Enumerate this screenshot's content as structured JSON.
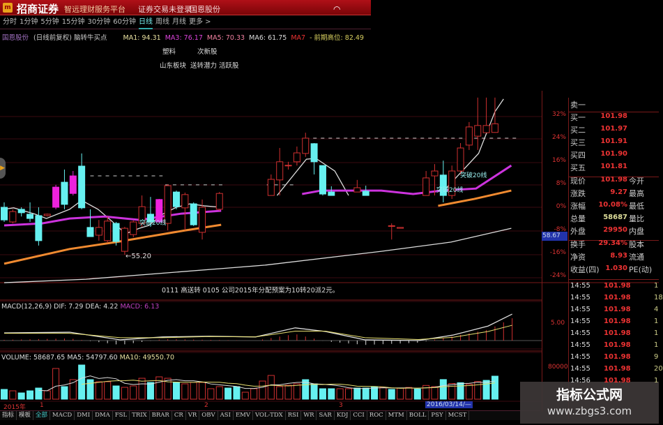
{
  "app": {
    "logo_text": "m",
    "brand": "招商证券",
    "slogan": "智远理财服务平台",
    "login_status": "证券交易未登录",
    "stock_name": "国恩股份",
    "wifi_icon": "wifi-icon"
  },
  "periods": [
    {
      "label": "分时"
    },
    {
      "label": "1分钟"
    },
    {
      "label": "5分钟"
    },
    {
      "label": "15分钟"
    },
    {
      "label": "30分钟"
    },
    {
      "label": "60分钟"
    },
    {
      "label": "日线",
      "active": true
    },
    {
      "label": "周线"
    },
    {
      "label": "月线"
    },
    {
      "label": "更多 >"
    }
  ],
  "info": {
    "stock": "国恩股份",
    "mode": "(日线前复权) 脑转牛买点",
    "ma1": "MA1: 94.31",
    "ma3": "MA3: 76.17",
    "ma5": "MA5: 70.33",
    "ma6": "MA6: 61.75",
    "ma7": "MA7",
    "prev_high": "- 前期高位: 82.49"
  },
  "tags": {
    "row1": [
      "塑料",
      "次新股"
    ],
    "row2": [
      "山东板块",
      "送转潜力 活跃股"
    ]
  },
  "colors": {
    "up": "#d03030",
    "down": "#66f0f0",
    "signal": "#ee22dd",
    "ma_white": "#dddddd",
    "ma_magenta": "#cc33dd",
    "ma_orange": "#f08a30",
    "grid": "#3a0a10"
  },
  "chart_data": {
    "type": "candlestick",
    "y_axis_ticks": [
      "32%",
      "24%",
      "16%",
      "8%",
      "0%",
      "-8%",
      "-16%",
      "-24%"
    ],
    "y_axis_values": [
      32,
      24,
      16,
      8,
      0,
      -8,
      -16,
      -24
    ],
    "current_price_tag": "58.67",
    "candles": [
      {
        "i": 0,
        "t": "down",
        "o": 0,
        "c": -4.4,
        "h": 1.7,
        "l": -5.1
      },
      {
        "i": 1,
        "t": "up",
        "o": -5.1,
        "c": -1.5,
        "h": -0.7,
        "l": -5.6
      },
      {
        "i": 2,
        "t": "down",
        "o": -0.7,
        "c": -1.9,
        "h": 0,
        "l": -3.2
      },
      {
        "i": 3,
        "t": "down",
        "o": -2.4,
        "c": -3.9,
        "h": 1.7,
        "l": -5.1
      },
      {
        "i": 4,
        "t": "down",
        "o": -2.9,
        "c": -11.6,
        "h": 0,
        "l": -13.3
      },
      {
        "i": 5,
        "t": "up",
        "o": -2.9,
        "c": -2.4,
        "h": -2.2,
        "l": -3.2
      },
      {
        "i": 6,
        "t": "signal",
        "o": 0,
        "c": 7.0,
        "h": 7.8,
        "l": -0.7
      },
      {
        "i": 7,
        "t": "down",
        "o": 8.7,
        "c": 1.0,
        "h": 13.1,
        "l": -0.7
      },
      {
        "i": 8,
        "t": "signal",
        "o": 4.8,
        "c": 10.9,
        "h": 12.6,
        "l": 4.1
      },
      {
        "i": 9,
        "t": "down",
        "o": 14.3,
        "c": -0.2,
        "h": 18.7,
        "l": -0.7
      },
      {
        "i": 10,
        "t": "down",
        "o": -7.0,
        "c": -10.2,
        "h": -0.7,
        "l": -10.2
      },
      {
        "i": 11,
        "t": "up",
        "o": -9.7,
        "c": -7.0,
        "h": -4.4,
        "l": -11.6
      },
      {
        "i": 12,
        "t": "up",
        "o": -11.6,
        "c": -4.8,
        "h": -3.2,
        "l": -12.4
      },
      {
        "i": 13,
        "t": "down",
        "o": -5.6,
        "c": -11.9,
        "h": -5.1,
        "l": -13.3
      },
      {
        "i": 14,
        "t": "up",
        "o": -15.3,
        "c": -7.3,
        "h": -6.8,
        "l": -16.5
      },
      {
        "i": 15,
        "t": "up",
        "o": -9.5,
        "c": -5.1,
        "h": -4.6,
        "l": -10.4
      },
      {
        "i": 16,
        "t": "up",
        "o": -5.6,
        "c": 0.2,
        "h": 4.1,
        "l": -6.8
      },
      {
        "i": 17,
        "t": "down",
        "o": -2.4,
        "c": -5.1,
        "h": 3.6,
        "l": -6.8
      },
      {
        "i": 18,
        "t": "signal",
        "o": -5.1,
        "c": 2.7,
        "h": 2.9,
        "l": -5.6
      },
      {
        "i": 19,
        "t": "up",
        "o": -5.6,
        "c": 7.5,
        "h": 8.0,
        "l": -8.0
      },
      {
        "i": 20,
        "t": "down",
        "o": 5.3,
        "c": 0.2,
        "h": 5.8,
        "l": -0.7
      },
      {
        "i": 21,
        "t": "up",
        "o": -0.2,
        "c": 4.4,
        "h": 5.1,
        "l": -8.0
      },
      {
        "i": 22,
        "t": "down",
        "o": 1.2,
        "c": -6.1,
        "h": 1.7,
        "l": -6.5
      },
      {
        "i": 23,
        "t": "up",
        "o": -8.7,
        "c": 0,
        "h": 2.7,
        "l": -11.2
      },
      {
        "i": 25,
        "t": "up",
        "o": -0.7,
        "c": 4.8,
        "h": 5.3,
        "l": -1.2
      },
      {
        "i": 31,
        "t": "up",
        "o": 4.1,
        "c": 9.7,
        "h": 11.4,
        "l": 4.1
      },
      {
        "i": 32,
        "t": "up",
        "o": 9.5,
        "c": 15.8,
        "h": 20.6,
        "l": 4.1
      },
      {
        "i": 33,
        "t": "up",
        "o": 14.5,
        "c": 14.6,
        "h": 15.8,
        "l": 13.1
      },
      {
        "i": 34,
        "t": "up",
        "o": 15.8,
        "c": 18.9,
        "h": 21.1,
        "l": 14.5
      },
      {
        "i": 35,
        "t": "up",
        "o": 18.7,
        "c": 24.0,
        "h": 25.9,
        "l": 17.5
      },
      {
        "i": 36,
        "t": "down",
        "o": 22.1,
        "c": 15.8,
        "h": 22.3,
        "l": 11.4
      },
      {
        "i": 37,
        "t": "down",
        "o": 14.5,
        "c": 4.6,
        "h": 14.5,
        "l": 4.1
      },
      {
        "i": 38,
        "t": "down",
        "o": 5.3,
        "c": 4.1,
        "h": 7.3,
        "l": 4.1
      },
      {
        "i": 41,
        "t": "up",
        "o": 5.3,
        "c": 6.8,
        "h": 9.5,
        "l": 5.3
      },
      {
        "i": 42,
        "t": "down",
        "o": 5.6,
        "c": 4.1,
        "h": 7.5,
        "l": 4.1
      },
      {
        "i": 45,
        "t": "up",
        "o": -6.5,
        "c": -6.4,
        "h": -5.6,
        "l": -11.2
      },
      {
        "i": 46,
        "t": "up",
        "o": -7.3,
        "c": -7.0,
        "h": -7.0,
        "l": -7.3
      },
      {
        "i": 49,
        "t": "up",
        "o": 4.1,
        "c": 10.2,
        "h": 12.6,
        "l": 4.1
      },
      {
        "i": 50,
        "t": "up",
        "o": 10.9,
        "c": 12.6,
        "h": 15.0,
        "l": 4.1
      },
      {
        "i": 51,
        "t": "down",
        "o": 11.2,
        "c": 4.1,
        "h": 16.2,
        "l": 1.7
      },
      {
        "i": 52,
        "t": "up",
        "o": 4.1,
        "c": 12.6,
        "h": 14.5,
        "l": 2.9
      },
      {
        "i": 53,
        "t": "up",
        "o": 12.6,
        "c": 20.6,
        "h": 22.3,
        "l": 11.4
      },
      {
        "i": 54,
        "t": "up",
        "o": 21.6,
        "c": 27.9,
        "h": 29.6,
        "l": 19.9
      },
      {
        "i": 55,
        "t": "up",
        "o": 24.7,
        "c": 28.4,
        "h": 38.1,
        "l": 19.9
      },
      {
        "i": 56,
        "t": "up",
        "o": 25.9,
        "c": 28.4,
        "h": 38.1,
        "l": 25.9
      },
      {
        "i": 57,
        "t": "up",
        "o": 26.0,
        "c": 29.0,
        "h": 38.1,
        "l": 25.9
      }
    ],
    "lines": [
      {
        "color": "ma_white",
        "segments": [
          [
            [
              0,
              -0.7
            ],
            [
              1.1,
              -0.2
            ],
            [
              3.6,
              -2.4
            ],
            [
              4.9,
              -3.9
            ],
            [
              7.6,
              -0.7
            ],
            [
              9,
              2.4
            ],
            [
              10.9,
              -0.7
            ],
            [
              12.5,
              -4.8
            ],
            [
              14.1,
              -9.2
            ],
            [
              15.7,
              -7.3
            ],
            [
              16.8,
              -6.3
            ],
            [
              18.4,
              -2.4
            ],
            [
              20,
              0
            ],
            [
              21.6,
              1.2
            ],
            [
              23.2,
              0.5
            ],
            [
              25.2,
              0
            ]
          ],
          [
            [
              31.7,
              4.1
            ],
            [
              35.1,
              16.7
            ],
            [
              36.2,
              17.0
            ],
            [
              38.4,
              12.6
            ],
            [
              40,
              4.1
            ]
          ],
          [
            [
              51.3,
              6.5
            ],
            [
              55.1,
              18.7
            ],
            [
              57,
              33.2
            ],
            [
              58,
              37.6
            ]
          ]
        ]
      },
      {
        "color": "ma_magenta",
        "segments": [
          [
            [
              0,
              -6.3
            ],
            [
              4.4,
              -5.6
            ],
            [
              7.6,
              -3.9
            ],
            [
              11.7,
              -3.2
            ],
            [
              15.7,
              -4.4
            ],
            [
              20.6,
              -2.2
            ],
            [
              25.2,
              -1.2
            ]
          ],
          [
            [
              34.6,
              4.6
            ],
            [
              36.8,
              5.8
            ],
            [
              43.8,
              5.8
            ],
            [
              47.5,
              4.6
            ],
            [
              50.8,
              5.8
            ],
            [
              54.8,
              6.5
            ],
            [
              58.9,
              14.5
            ]
          ]
        ]
      },
      {
        "color": "ma_orange",
        "segments": [
          [
            [
              0,
              -19.6
            ],
            [
              7.6,
              -14.5
            ],
            [
              13,
              -12.1
            ],
            [
              21.1,
              -8.0
            ],
            [
              25.2,
              -6.1
            ]
          ],
          [
            [
              50.4,
              0.5
            ],
            [
              54.6,
              2.9
            ],
            [
              58.9,
              5.8
            ]
          ]
        ]
      },
      {
        "color": "ma_white",
        "segments": [
          [
            [
              0,
              -26.2
            ],
            [
              9.5,
              -25
            ],
            [
              25.2,
              -21.3
            ],
            [
              30.3,
              -20.1
            ],
            [
              43.8,
              -15.3
            ],
            [
              51.9,
              -12.1
            ],
            [
              58.9,
              -7.3
            ]
          ]
        ]
      }
    ],
    "dashed_levels": [
      {
        "y": 10.9,
        "from": 10,
        "to": 18.4
      },
      {
        "y": 7.8,
        "from": 18.7,
        "to": 25.5
      },
      {
        "y": 7.8,
        "from": 30.5,
        "to": 34
      },
      {
        "y": 24.0,
        "from": 35,
        "to": 59.5
      }
    ],
    "annotations": {
      "low": "←55.20",
      "break1": "突破20线",
      "break2": "突破20线",
      "break3": "突破20线"
    },
    "notice": "0111 高送转 0105 公司2015年分配预案为10转20派2元。",
    "macd": {
      "header": "MACD(12,26,9) DIF: 7.29 DEA: 4.22",
      "macd_label": "MACD: 6.13",
      "axis_tick": "5.00",
      "dif": [
        [
          0,
          2.1
        ],
        [
          7.6,
          2.3
        ],
        [
          13.5,
          0.2
        ],
        [
          18.4,
          1.0
        ],
        [
          23.8,
          1.2
        ],
        [
          29.2,
          1.0
        ],
        [
          33.8,
          3.5
        ],
        [
          37.3,
          2.5
        ],
        [
          41.9,
          0.2
        ],
        [
          48.1,
          0.0
        ],
        [
          52.1,
          1.5
        ],
        [
          56.2,
          4.0
        ],
        [
          59,
          7.29
        ]
      ],
      "dea": [
        [
          0,
          2.0
        ],
        [
          7.6,
          2.0
        ],
        [
          13.5,
          0.8
        ],
        [
          18.4,
          0.8
        ],
        [
          23.8,
          1.1
        ],
        [
          29.2,
          1.0
        ],
        [
          33.8,
          2.6
        ],
        [
          37.3,
          2.6
        ],
        [
          41.9,
          0.8
        ],
        [
          48.1,
          0.3
        ],
        [
          52.1,
          0.9
        ],
        [
          56.2,
          2.5
        ],
        [
          59,
          4.22
        ]
      ]
    },
    "volume": {
      "header": "VOLUME: 58687.65 MA5: 54797.60",
      "ma10_label": "MA10: 49550.70",
      "axis_tick": "80000",
      "bars": [
        [
          "down",
          24900
        ],
        [
          "up",
          21300
        ],
        [
          "down",
          16000
        ],
        [
          "down",
          21300
        ],
        [
          "down",
          28400
        ],
        [
          "up",
          21300
        ],
        [
          "up",
          78200
        ],
        [
          "down",
          32000
        ],
        [
          "up",
          49800
        ],
        [
          "down",
          87100
        ],
        [
          "down",
          49800
        ],
        [
          "up",
          44400
        ],
        [
          "up",
          44400
        ],
        [
          "down",
          33800
        ],
        [
          "up",
          30200
        ],
        [
          "up",
          33800
        ],
        [
          "up",
          53300
        ],
        [
          "down",
          42700
        ],
        [
          "up",
          56900
        ],
        [
          "up",
          53300
        ],
        [
          "down",
          42700
        ],
        [
          "up",
          39100
        ],
        [
          "up",
          42700
        ],
        [
          "up",
          42700
        ],
        [
          "up",
          26700
        ],
        [
          "up",
          32000
        ],
        [
          "down",
          28400
        ],
        [
          "down",
          32000
        ],
        [
          "up",
          17800
        ],
        [
          "up",
          26700
        ],
        [
          "up",
          46200
        ],
        [
          "up",
          60500
        ],
        [
          "up",
          32000
        ],
        [
          "up",
          35600
        ],
        [
          "up",
          39100
        ],
        [
          "down",
          49800
        ],
        [
          "down",
          39100
        ],
        [
          "down",
          26700
        ],
        [
          "down",
          26700
        ],
        [
          "up",
          26700
        ],
        [
          "up",
          26700
        ],
        [
          "down",
          28400
        ],
        [
          "down",
          28400
        ],
        [
          "down",
          32000
        ],
        [
          "up",
          30000
        ],
        [
          "down",
          25000
        ],
        [
          "up",
          28000
        ],
        [
          "up",
          30000
        ],
        [
          "down",
          26000
        ],
        [
          "up",
          35000
        ],
        [
          "up",
          32000
        ],
        [
          "down",
          50000
        ],
        [
          "up",
          40000
        ],
        [
          "down",
          42000
        ],
        [
          "up",
          38000
        ],
        [
          "up",
          45000
        ],
        [
          "down",
          48000
        ],
        [
          "down",
          58687
        ]
      ]
    },
    "x_axis": {
      "year": "2015年",
      "months": [
        "1",
        "2",
        "3"
      ],
      "cursor_date": "2016/03/14/—"
    }
  },
  "quote": {
    "sell": [
      {
        "label": "卖一",
        "value": ""
      }
    ],
    "buy": [
      {
        "label": "买一",
        "value": "101.98"
      },
      {
        "label": "买二",
        "value": "101.97"
      },
      {
        "label": "买三",
        "value": "101.91"
      },
      {
        "label": "买四",
        "value": "101.90"
      },
      {
        "label": "买五",
        "value": "101.81"
      }
    ],
    "stats": [
      {
        "label": "现价",
        "value": "101.98",
        "right": "今开"
      },
      {
        "label": "涨跌",
        "value": "9.27",
        "right": "最高"
      },
      {
        "label": "涨幅",
        "value": "10.08%",
        "right": "最低"
      },
      {
        "label": "总量",
        "value": "58687",
        "right": "量比"
      },
      {
        "label": "外盘",
        "value": "29950",
        "right": "内盘"
      }
    ],
    "fund": [
      {
        "label": "换手",
        "value": "29.34%",
        "right": "股本"
      },
      {
        "label": "净资",
        "value": "8.93",
        "right": "流通"
      },
      {
        "label": "收益(四)",
        "value": "1.030",
        "right": "PE(动)"
      }
    ]
  },
  "ticks": [
    {
      "time": "14:55",
      "price": "101.98",
      "vol": "1"
    },
    {
      "time": "14:55",
      "price": "101.98",
      "vol": "18"
    },
    {
      "time": "14:55",
      "price": "101.98",
      "vol": "4"
    },
    {
      "time": "14:55",
      "price": "101.98",
      "vol": "1"
    },
    {
      "time": "14:55",
      "price": "101.98",
      "vol": "1"
    },
    {
      "time": "14:55",
      "price": "101.98",
      "vol": "1"
    },
    {
      "time": "14:55",
      "price": "101.98",
      "vol": "9"
    },
    {
      "time": "14:55",
      "price": "101.98",
      "vol": "20"
    },
    {
      "time": "14:56",
      "price": "101.98",
      "vol": "1"
    }
  ],
  "tabs": [
    "指标",
    "模板",
    "全部",
    "MACD",
    "DMI",
    "DMA",
    "FSL",
    "TRIX",
    "BRAR",
    "CR",
    "VR",
    "OBV",
    "ASI",
    "EMV",
    "VOL-TDX",
    "RSI",
    "WR",
    "SAR",
    "KDJ",
    "CCI",
    "ROC",
    "MTM",
    "BOLL",
    "PSY",
    "MCST"
  ],
  "watermark": {
    "title": "指标公式网",
    "url": "www.zbgs3.com"
  }
}
